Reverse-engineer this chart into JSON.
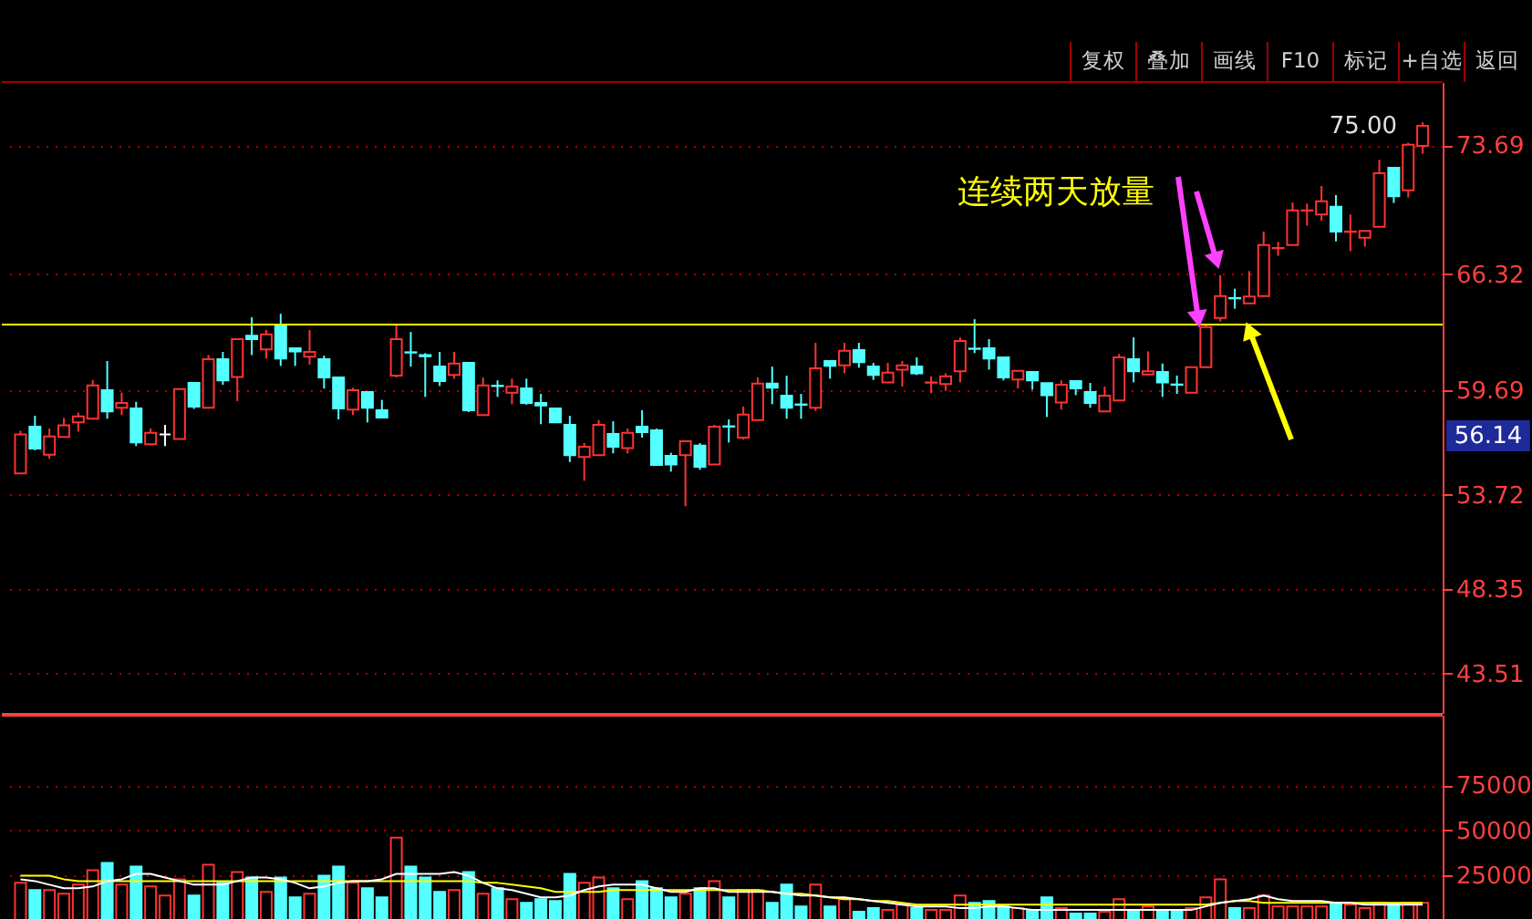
{
  "chart_data": [
    {
      "type": "candlestick",
      "categories": [
        null,
        null,
        null,
        null,
        null,
        null,
        null,
        null,
        null,
        null,
        null,
        null,
        null,
        null,
        null,
        null,
        null,
        null,
        null,
        null,
        null,
        null,
        null,
        null,
        null,
        null,
        null,
        null,
        null,
        null,
        null,
        null,
        null,
        null,
        null,
        null,
        null,
        null,
        null,
        null,
        null,
        null,
        null,
        null,
        null,
        null,
        null,
        null,
        null,
        null,
        null,
        null,
        null,
        null,
        null,
        null,
        null,
        null,
        null,
        null,
        null,
        null,
        null,
        null,
        null,
        null,
        null,
        null,
        null,
        null,
        null,
        null,
        null,
        null,
        null,
        null,
        null,
        null,
        null,
        null,
        null,
        null,
        null,
        null,
        null,
        null,
        null,
        null,
        null,
        null,
        null,
        null,
        null,
        null,
        null,
        null,
        null,
        null
      ],
      "ohlc": [
        [
          54.94,
          57.37,
          54.94,
          57.16
        ],
        [
          57.61,
          58.23,
          56.26,
          56.36
        ],
        [
          56.01,
          57.5,
          55.77,
          57.05
        ],
        [
          57.02,
          58.1,
          57.02,
          57.68
        ],
        [
          57.85,
          58.41,
          57.33,
          58.2
        ],
        [
          58.06,
          60.28,
          58.06,
          59.97
        ],
        [
          59.69,
          61.36,
          58.06,
          58.48
        ],
        [
          58.69,
          59.55,
          58.27,
          58.96
        ],
        [
          58.65,
          59.03,
          56.5,
          56.71
        ],
        [
          56.6,
          57.5,
          56.53,
          57.26
        ],
        [
          57.16,
          57.71,
          56.5,
          57.16
        ],
        [
          56.91,
          59.76,
          56.91,
          59.76
        ],
        [
          60.11,
          60.11,
          58.62,
          58.76
        ],
        [
          58.69,
          61.7,
          58.69,
          61.46
        ],
        [
          61.46,
          61.88,
          60.0,
          60.25
        ],
        [
          60.45,
          62.61,
          59.07,
          62.61
        ],
        [
          62.81,
          63.86,
          61.7,
          62.61
        ],
        [
          62.02,
          63.13,
          61.5,
          62.88
        ],
        [
          63.34,
          64.06,
          61.08,
          61.5
        ],
        [
          62.09,
          62.09,
          61.08,
          61.91
        ],
        [
          61.6,
          63.13,
          61.15,
          61.88
        ],
        [
          61.46,
          61.67,
          59.79,
          60.42
        ],
        [
          60.42,
          60.42,
          58.02,
          58.65
        ],
        [
          58.58,
          59.83,
          58.27,
          59.69
        ],
        [
          59.59,
          59.59,
          57.85,
          58.69
        ],
        [
          58.55,
          59.14,
          58.13,
          58.13
        ],
        [
          60.52,
          63.47,
          60.42,
          62.61
        ],
        [
          61.86,
          63.02,
          61.04,
          61.84
        ],
        [
          61.7,
          61.81,
          59.31,
          61.63
        ],
        [
          61.04,
          61.88,
          59.93,
          60.21
        ],
        [
          60.56,
          61.88,
          60.35,
          61.22
        ],
        [
          61.25,
          61.25,
          58.44,
          58.55
        ],
        [
          58.27,
          60.42,
          58.27,
          59.97
        ],
        [
          59.95,
          60.25,
          59.31,
          59.93
        ],
        [
          59.55,
          60.35,
          58.89,
          59.9
        ],
        [
          59.79,
          60.35,
          58.86,
          58.96
        ],
        [
          58.96,
          59.48,
          57.75,
          58.82
        ],
        [
          58.65,
          58.65,
          57.85,
          57.85
        ],
        [
          57.71,
          58.23,
          55.59,
          55.98
        ],
        [
          55.87,
          56.67,
          54.52,
          56.46
        ],
        [
          55.98,
          57.99,
          55.98,
          57.71
        ],
        [
          57.19,
          57.92,
          56.08,
          56.46
        ],
        [
          56.39,
          57.5,
          56.08,
          57.26
        ],
        [
          57.61,
          58.55,
          56.98,
          57.3
        ],
        [
          57.4,
          57.5,
          55.42,
          55.42
        ],
        [
          55.94,
          56.12,
          55.04,
          55.45
        ],
        [
          55.98,
          56.77,
          53.06,
          56.77
        ],
        [
          56.53,
          56.67,
          55.14,
          55.31
        ],
        [
          55.45,
          57.71,
          55.45,
          57.61
        ],
        [
          57.63,
          58.02,
          56.7,
          57.61
        ],
        [
          56.98,
          58.76,
          56.88,
          58.3
        ],
        [
          57.99,
          60.42,
          57.99,
          60.07
        ],
        [
          60.07,
          61.04,
          58.89,
          59.83
        ],
        [
          59.38,
          60.52,
          58.06,
          58.69
        ],
        [
          58.88,
          59.48,
          58.06,
          58.86
        ],
        [
          58.69,
          62.4,
          58.51,
          60.94
        ],
        [
          61.36,
          61.36,
          60.35,
          61.08
        ],
        [
          61.11,
          62.4,
          60.66,
          61.95
        ],
        [
          61.98,
          62.4,
          60.98,
          61.29
        ],
        [
          61.04,
          61.25,
          60.28,
          60.56
        ],
        [
          60.14,
          61.25,
          60.14,
          60.7
        ],
        [
          60.87,
          61.36,
          59.9,
          61.11
        ],
        [
          61.04,
          61.57,
          60.56,
          60.66
        ],
        [
          60.12,
          60.49,
          59.52,
          60.14
        ],
        [
          60.04,
          60.66,
          59.66,
          60.49
        ],
        [
          60.77,
          62.71,
          60.14,
          62.5
        ],
        [
          62.07,
          63.75,
          61.81,
          62.05
        ],
        [
          62.09,
          62.61,
          60.87,
          61.5
        ],
        [
          61.57,
          61.57,
          60.25,
          60.42
        ],
        [
          60.31,
          60.8,
          59.79,
          60.8
        ],
        [
          60.73,
          60.73,
          59.72,
          60.25
        ],
        [
          60.1,
          60.1,
          58.16,
          59.41
        ],
        [
          58.99,
          60.25,
          58.58,
          60.0
        ],
        [
          60.21,
          60.21,
          59.41,
          59.79
        ],
        [
          59.59,
          60.11,
          58.69,
          58.96
        ],
        [
          58.48,
          59.9,
          58.48,
          59.38
        ],
        [
          59.1,
          61.77,
          59.1,
          61.57
        ],
        [
          61.46,
          62.71,
          60.14,
          60.77
        ],
        [
          60.59,
          61.91,
          60.53,
          60.77
        ],
        [
          60.73,
          61.22,
          59.31,
          60.14
        ],
        [
          60.02,
          60.53,
          59.48,
          60.0
        ],
        [
          59.55,
          61.01,
          59.55,
          61.01
        ],
        [
          61.01,
          63.48,
          61.01,
          63.3
        ],
        [
          63.82,
          66.26,
          63.62,
          65.07
        ],
        [
          64.96,
          65.49,
          64.35,
          64.94
        ],
        [
          64.66,
          66.5,
          64.66,
          65.04
        ],
        [
          65.07,
          68.76,
          65.07,
          67.99
        ],
        [
          67.8,
          68.17,
          67.37,
          67.82
        ],
        [
          67.99,
          70.42,
          67.99,
          69.97
        ],
        [
          69.95,
          70.35,
          69.1,
          69.97
        ],
        [
          69.73,
          71.36,
          69.38,
          70.49
        ],
        [
          70.18,
          70.84,
          68.2,
          68.76
        ],
        [
          68.74,
          69.73,
          67.64,
          68.76
        ],
        [
          68.41,
          68.79,
          67.89,
          68.79
        ],
        [
          69.03,
          72.85,
          69.03,
          72.09
        ],
        [
          72.4,
          72.4,
          70.39,
          70.77
        ],
        [
          71.12,
          73.83,
          70.7,
          73.72
        ],
        [
          73.65,
          75.0,
          73.2,
          74.8
        ]
      ],
      "colors": [
        "#ff3232",
        "#54ffff",
        "#ff3232",
        "#ff3232",
        "#ff3232",
        "#ff3232",
        "#54ffff",
        "#ff3232",
        "#54ffff",
        "#ff3232",
        "#ffffff",
        "#ff3232",
        "#54ffff",
        "#ff3232",
        "#54ffff",
        "#ff3232",
        "#54ffff",
        "#ff3232",
        "#54ffff",
        "#54ffff",
        "#ff3232",
        "#54ffff",
        "#54ffff",
        "#ff3232",
        "#54ffff",
        "#54ffff",
        "#ff3232",
        "#54ffff",
        "#54ffff",
        "#54ffff",
        "#ff3232",
        "#54ffff",
        "#ff3232",
        "#54ffff",
        "#ff3232",
        "#54ffff",
        "#54ffff",
        "#54ffff",
        "#54ffff",
        "#ff3232",
        "#ff3232",
        "#54ffff",
        "#ff3232",
        "#54ffff",
        "#54ffff",
        "#54ffff",
        "#ff3232",
        "#54ffff",
        "#ff3232",
        "#54ffff",
        "#ff3232",
        "#ff3232",
        "#54ffff",
        "#54ffff",
        "#54ffff",
        "#ff3232",
        "#54ffff",
        "#ff3232",
        "#54ffff",
        "#54ffff",
        "#ff3232",
        "#ff3232",
        "#54ffff",
        "#ff3232",
        "#ff3232",
        "#ff3232",
        "#54ffff",
        "#54ffff",
        "#54ffff",
        "#ff3232",
        "#54ffff",
        "#54ffff",
        "#ff3232",
        "#54ffff",
        "#54ffff",
        "#ff3232",
        "#ff3232",
        "#54ffff",
        "#ff3232",
        "#54ffff",
        "#54ffff",
        "#ff3232",
        "#ff3232",
        "#ff3232",
        "#54ffff",
        "#ff3232",
        "#ff3232",
        "#ff3232",
        "#ff3232",
        "#ff3232",
        "#ff3232",
        "#54ffff",
        "#ff3232",
        "#ff3232",
        "#ff3232",
        "#54ffff",
        "#ff3232",
        "#ff3232"
      ],
      "ylim": [
        41.25,
        77.3
      ],
      "yticks": [
        43.51,
        48.35,
        53.72,
        59.69,
        66.32,
        73.69
      ],
      "grid": "y",
      "tick_labels": "y",
      "ref_lines": [
        {
          "axis": "y",
          "value": 63.44,
          "color": "#ffff00"
        }
      ],
      "annotations": [
        "连续两天放量",
        "75.00",
        "56.14",
        "复权",
        "叠加",
        "画线",
        "F10",
        "标记",
        "+自选",
        "返回"
      ]
    },
    {
      "type": "bar",
      "categories": [
        null,
        null,
        null,
        null,
        null,
        null,
        null,
        null,
        null,
        null,
        null,
        null,
        null,
        null,
        null,
        null,
        null,
        null,
        null,
        null,
        null,
        null,
        null,
        null,
        null,
        null,
        null,
        null,
        null,
        null,
        null,
        null,
        null,
        null,
        null,
        null,
        null,
        null,
        null,
        null,
        null,
        null,
        null,
        null,
        null,
        null,
        null,
        null,
        null,
        null,
        null,
        null,
        null,
        null,
        null,
        null,
        null,
        null,
        null,
        null,
        null,
        null,
        null,
        null,
        null,
        null,
        null,
        null,
        null,
        null,
        null,
        null,
        null,
        null,
        null,
        null,
        null,
        null,
        null,
        null,
        null,
        null,
        null,
        null,
        null,
        null,
        null,
        null,
        null,
        null,
        null,
        null,
        null,
        null,
        null,
        null,
        null,
        null
      ],
      "series": [
        {
          "type": "bar",
          "values": [
            21000,
            17000,
            17000,
            15000,
            20000,
            28000,
            32000,
            20000,
            30000,
            19000,
            14000,
            23000,
            14000,
            31000,
            21000,
            27000,
            24000,
            16000,
            24000,
            13000,
            15000,
            25000,
            30000,
            21000,
            18000,
            13000,
            46000,
            30000,
            24000,
            16000,
            17000,
            27000,
            15000,
            18000,
            12000,
            10000,
            12000,
            11000,
            26000,
            21000,
            24000,
            18000,
            12000,
            22000,
            18000,
            13000,
            15000,
            18000,
            22000,
            13000,
            17000,
            17000,
            10000,
            20000,
            8000,
            20000,
            8000,
            12000,
            5000,
            7000,
            6000,
            9000,
            7000,
            6000,
            6000,
            14000,
            10000,
            11000,
            8000,
            7000,
            6000,
            13000,
            7000,
            4000,
            4000,
            5000,
            12000,
            6000,
            8000,
            6000,
            5000,
            7000,
            13000,
            23000,
            7000,
            7000,
            14000,
            8000,
            8000,
            8000,
            8000,
            10000,
            9000,
            7000,
            10000,
            9000,
            10000,
            10000
          ],
          "colors": [
            "#ff3232",
            "#54ffff",
            "#ff3232",
            "#ff3232",
            "#ff3232",
            "#ff3232",
            "#54ffff",
            "#ff3232",
            "#54ffff",
            "#ff3232",
            "#ff3232",
            "#ff3232",
            "#54ffff",
            "#ff3232",
            "#54ffff",
            "#ff3232",
            "#54ffff",
            "#ff3232",
            "#54ffff",
            "#54ffff",
            "#ff3232",
            "#54ffff",
            "#54ffff",
            "#ff3232",
            "#54ffff",
            "#54ffff",
            "#ff3232",
            "#54ffff",
            "#54ffff",
            "#54ffff",
            "#ff3232",
            "#54ffff",
            "#ff3232",
            "#54ffff",
            "#ff3232",
            "#54ffff",
            "#54ffff",
            "#54ffff",
            "#54ffff",
            "#ff3232",
            "#ff3232",
            "#54ffff",
            "#ff3232",
            "#54ffff",
            "#54ffff",
            "#54ffff",
            "#ff3232",
            "#54ffff",
            "#ff3232",
            "#54ffff",
            "#ff3232",
            "#ff3232",
            "#54ffff",
            "#54ffff",
            "#54ffff",
            "#ff3232",
            "#54ffff",
            "#ff3232",
            "#54ffff",
            "#54ffff",
            "#ff3232",
            "#ff3232",
            "#54ffff",
            "#ff3232",
            "#ff3232",
            "#ff3232",
            "#54ffff",
            "#54ffff",
            "#54ffff",
            "#ff3232",
            "#54ffff",
            "#54ffff",
            "#ff3232",
            "#54ffff",
            "#54ffff",
            "#ff3232",
            "#ff3232",
            "#54ffff",
            "#ff3232",
            "#54ffff",
            "#54ffff",
            "#ff3232",
            "#ff3232",
            "#ff3232",
            "#54ffff",
            "#ff3232",
            "#ff3232",
            "#ff3232",
            "#ff3232",
            "#ff3232",
            "#ff3232",
            "#54ffff",
            "#ff3232",
            "#ff3232",
            "#ff3232",
            "#54ffff",
            "#ff3232",
            "#ff3232"
          ]
        },
        {
          "type": "line",
          "color": "#ffffff",
          "values": [
            23000,
            22000,
            20000,
            18000,
            18000,
            19000,
            22000,
            23000,
            26000,
            26000,
            24000,
            22000,
            20000,
            20000,
            20000,
            22000,
            24000,
            24000,
            23000,
            21000,
            18000,
            19000,
            21000,
            22000,
            22000,
            23000,
            26000,
            26000,
            26000,
            26000,
            27000,
            25000,
            21000,
            18000,
            17000,
            15000,
            13000,
            13000,
            14000,
            17000,
            19000,
            20000,
            20000,
            20000,
            18000,
            16000,
            16000,
            18000,
            18000,
            16000,
            16000,
            16000,
            16000,
            15000,
            14000,
            14000,
            13000,
            13000,
            12000,
            11000,
            10000,
            9000,
            8000,
            8000,
            8000,
            7000,
            7000,
            8000,
            8000,
            7000,
            6000,
            6000,
            6000,
            6000,
            6000,
            6000,
            6000,
            6000,
            6000,
            6000,
            6000,
            6000,
            8000,
            10000,
            11000,
            12000,
            14000,
            12000,
            11000,
            11000,
            11000,
            10000,
            10000,
            9000,
            9000,
            9000,
            9000,
            9000
          ]
        },
        {
          "type": "line",
          "color": "#ffff00",
          "values": [
            25000,
            25000,
            25000,
            23000,
            22000,
            22000,
            22000,
            22000,
            22000,
            22000,
            22000,
            22000,
            22000,
            22000,
            22000,
            22000,
            22000,
            22000,
            22000,
            22000,
            22000,
            22000,
            22000,
            22000,
            22000,
            22000,
            22000,
            22000,
            22000,
            22000,
            22000,
            22000,
            21000,
            21000,
            20000,
            19000,
            18000,
            16000,
            16000,
            16000,
            16000,
            17000,
            17000,
            17000,
            17000,
            17000,
            17000,
            17000,
            17000,
            17000,
            17000,
            17000,
            16000,
            15000,
            15000,
            14000,
            13000,
            12000,
            12000,
            11000,
            11000,
            10000,
            9000,
            9000,
            9000,
            9000,
            9000,
            9000,
            9000,
            9000,
            9000,
            9000,
            9000,
            9000,
            9000,
            9000,
            9000,
            9000,
            9000,
            9000,
            9000,
            9000,
            9000,
            10000,
            11000,
            11000,
            10000,
            10000,
            10000,
            10000,
            10000,
            10000,
            10000,
            10000,
            10000,
            10000,
            10000,
            10000
          ]
        }
      ],
      "ylim": [
        0,
        114000
      ],
      "yticks": [
        25000,
        50000,
        75000
      ],
      "grid": "y",
      "tick_labels": "y"
    }
  ]
}
